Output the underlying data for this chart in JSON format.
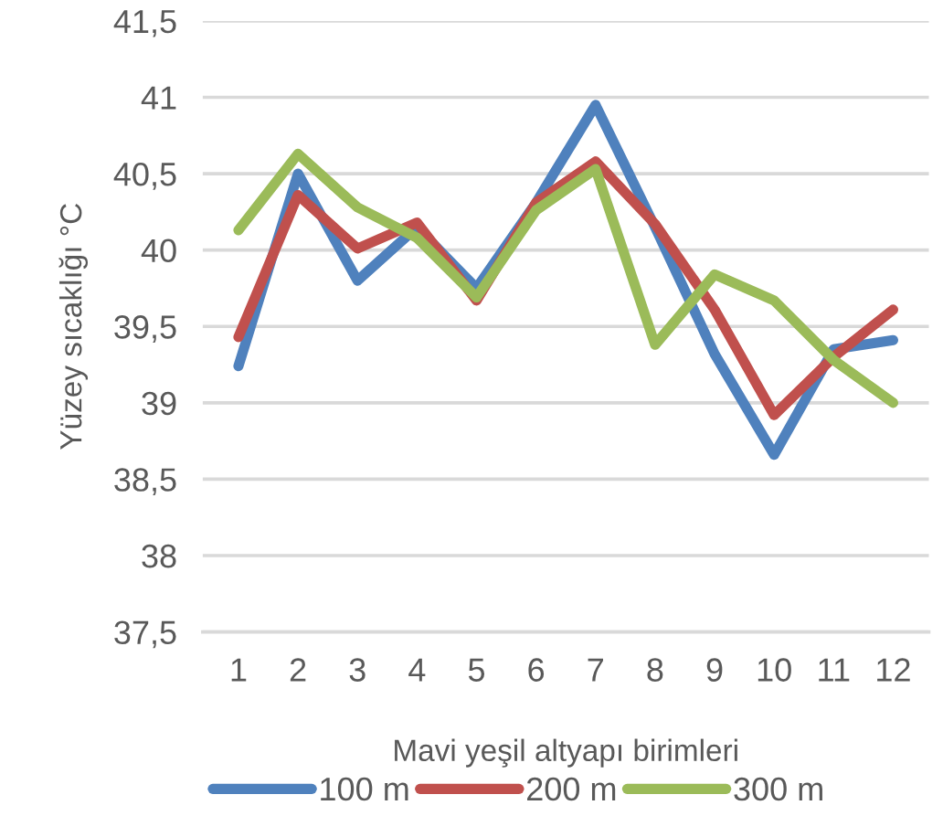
{
  "chart_data": {
    "type": "line",
    "xlabel": "Mavi yeşil altyapı birimleri",
    "ylabel": "Yüzey sıcaklığı °C",
    "categories": [
      "1",
      "2",
      "3",
      "4",
      "5",
      "6",
      "7",
      "8",
      "9",
      "10",
      "11",
      "12"
    ],
    "series": [
      {
        "name": "100 m",
        "color": "#4f81bd",
        "values": [
          39.24,
          40.5,
          39.8,
          40.15,
          39.75,
          40.31,
          40.95,
          40.15,
          39.32,
          38.66,
          39.35,
          39.41
        ]
      },
      {
        "name": "200 m",
        "color": "#c0504d",
        "values": [
          39.43,
          40.36,
          40.01,
          40.18,
          39.67,
          40.31,
          40.58,
          40.17,
          39.61,
          38.92,
          39.3,
          39.61
        ]
      },
      {
        "name": "300 m",
        "color": "#9bbb59",
        "values": [
          40.13,
          40.63,
          40.28,
          40.08,
          39.69,
          40.26,
          40.53,
          39.38,
          39.84,
          39.67,
          39.28,
          39.0
        ]
      }
    ],
    "ylim": [
      37.5,
      41.5
    ],
    "yticks": [
      {
        "value": 37.5,
        "label": "37,5"
      },
      38,
      {
        "value": 38.5,
        "label": "38,5"
      },
      39,
      {
        "value": 39.5,
        "label": "39,5"
      },
      40,
      {
        "value": 40.5,
        "label": "40,5"
      },
      41,
      {
        "value": 41.5,
        "label": "41,5"
      }
    ],
    "grid": "y",
    "legend": "bottom",
    "marker": "none",
    "line_style": "solid"
  }
}
